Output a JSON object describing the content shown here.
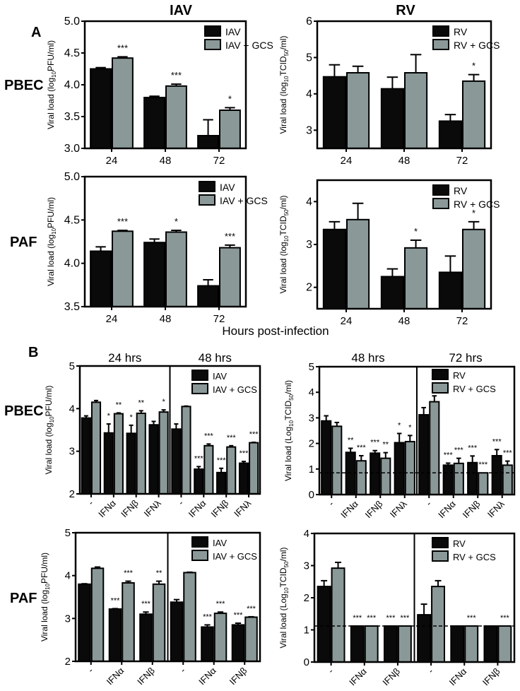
{
  "panel_labels": {
    "A": "A",
    "B": "B"
  },
  "row_labels": {
    "pbec": "PBEC",
    "paf": "PAF"
  },
  "column_titles": {
    "iav": "IAV",
    "rv": "RV"
  },
  "x_axis_title": "Hours post-infection",
  "colors": {
    "infected": "#0a0a0a",
    "gcs": "#8a9898",
    "axis": "#000000"
  },
  "chart_data": [
    {
      "type": "bar",
      "title": "IAV PBEC",
      "ylabel": [
        {
          "t": "Viral load (log"
        },
        {
          "t": "10",
          "sub": true
        },
        {
          "t": "PFU/ml)"
        }
      ],
      "ylim": [
        3.0,
        5.0
      ],
      "yticks": [
        "3.0",
        "3.5",
        "4.0",
        "4.5",
        "5.0"
      ],
      "categories": [
        "24",
        "48",
        "72"
      ],
      "series": [
        {
          "name": "IAV",
          "values": [
            4.25,
            3.8,
            3.2
          ],
          "errors": [
            0.02,
            0.02,
            0.25
          ],
          "sig": [
            "",
            "",
            ""
          ]
        },
        {
          "name": "IAV + GCS",
          "values": [
            4.42,
            3.98,
            3.6
          ],
          "errors": [
            0.02,
            0.03,
            0.04
          ],
          "sig": [
            "***",
            "***",
            "*"
          ]
        }
      ],
      "legend": "top-right"
    },
    {
      "type": "bar",
      "title": "RV PBEC",
      "ylabel": [
        {
          "t": "Viral load (log"
        },
        {
          "t": "10",
          "sub": true
        },
        {
          "t": "TCID"
        },
        {
          "t": "50",
          "sub": true
        },
        {
          "t": "/ml)"
        }
      ],
      "ylim": [
        2.5,
        6
      ],
      "yticks": [
        "3",
        "4",
        "5",
        "6"
      ],
      "categories": [
        "24",
        "48",
        "72"
      ],
      "series": [
        {
          "name": "RV",
          "values": [
            4.47,
            4.14,
            3.25
          ],
          "errors": [
            0.33,
            0.32,
            0.18
          ],
          "sig": [
            "",
            "",
            ""
          ]
        },
        {
          "name": "RV + GCS",
          "values": [
            4.58,
            4.58,
            4.35
          ],
          "errors": [
            0.18,
            0.5,
            0.18
          ],
          "sig": [
            "",
            "",
            "*"
          ]
        }
      ],
      "legend": "top-right"
    },
    {
      "type": "bar",
      "title": "IAV PAF",
      "ylabel": [
        {
          "t": "Viral load (log"
        },
        {
          "t": "10",
          "sub": true
        },
        {
          "t": "PFU/ml)"
        }
      ],
      "ylim": [
        3.5,
        5.0
      ],
      "yticks": [
        "3.5",
        "4.0",
        "4.5",
        "5.0"
      ],
      "categories": [
        "24",
        "48",
        "72"
      ],
      "series": [
        {
          "name": "IAV",
          "values": [
            4.14,
            4.24,
            3.74
          ],
          "errors": [
            0.05,
            0.04,
            0.07
          ],
          "sig": [
            "",
            "",
            ""
          ]
        },
        {
          "name": "IAV + GCS",
          "values": [
            4.37,
            4.36,
            4.18
          ],
          "errors": [
            0.01,
            0.02,
            0.03
          ],
          "sig": [
            "***",
            "*",
            "***"
          ]
        }
      ],
      "legend": "top-right"
    },
    {
      "type": "bar",
      "title": "RV PAF",
      "ylabel": [
        {
          "t": "Viral load (log"
        },
        {
          "t": "10",
          "sub": true
        },
        {
          "t": "TCID"
        },
        {
          "t": "50",
          "sub": true
        },
        {
          "t": "/ml)"
        }
      ],
      "ylim": [
        1.5,
        4.5
      ],
      "yticks": [
        "2",
        "3",
        "4"
      ],
      "categories": [
        "24",
        "48",
        "72"
      ],
      "series": [
        {
          "name": "RV",
          "values": [
            3.35,
            2.25,
            2.35
          ],
          "errors": [
            0.18,
            0.18,
            0.38
          ],
          "sig": [
            "",
            "",
            ""
          ]
        },
        {
          "name": "RV + GCS",
          "values": [
            3.58,
            2.92,
            3.35
          ],
          "errors": [
            0.38,
            0.18,
            0.18
          ],
          "sig": [
            "",
            "*",
            "*"
          ]
        }
      ],
      "legend": "top-right"
    },
    {
      "type": "bar",
      "title": "IAV PBEC interferon",
      "ylabel": [
        {
          "t": "Viral load (log"
        },
        {
          "t": "10",
          "sub": true
        },
        {
          "t": "PFU/ml)"
        }
      ],
      "ylim": [
        2,
        5
      ],
      "yticks": [
        "2",
        "3",
        "4",
        "5"
      ],
      "sections": [
        {
          "label": "24 hrs",
          "count": 4
        },
        {
          "label": "48 hrs",
          "count": 4
        }
      ],
      "categories": [
        "-",
        "IFNα",
        "IFNβ",
        "IFNλ",
        "-",
        "IFNα",
        "IFNβ",
        "IFNλ"
      ],
      "series": [
        {
          "name": "IAV",
          "values": [
            3.78,
            3.43,
            3.42,
            3.62,
            3.52,
            2.58,
            2.5,
            2.72
          ],
          "errors": [
            0.05,
            0.21,
            0.19,
            0.08,
            0.12,
            0.06,
            0.1,
            0.04
          ],
          "sig": [
            "",
            "*",
            "*",
            "",
            "",
            "***",
            "***",
            "***"
          ]
        },
        {
          "name": "IAV + GCS",
          "values": [
            4.15,
            3.88,
            3.89,
            3.92,
            4.05,
            3.13,
            3.1,
            3.2
          ],
          "errors": [
            0.04,
            0.02,
            0.06,
            0.05,
            0.01,
            0.04,
            0.03,
            0.01
          ],
          "sig": [
            "",
            "**",
            "**",
            "*",
            "",
            "***",
            "***",
            "***"
          ]
        }
      ],
      "legend": "top-right"
    },
    {
      "type": "bar",
      "title": "RV PBEC interferon",
      "ylabel": [
        {
          "t": "Viral load  (Log"
        },
        {
          "t": "10",
          "sub": true
        },
        {
          "t": "TCID"
        },
        {
          "t": "50",
          "sub": true
        },
        {
          "t": "/ml)"
        }
      ],
      "ylim": [
        0,
        5
      ],
      "yticks": [
        "0",
        "1",
        "2",
        "3",
        "4",
        "5"
      ],
      "sections": [
        {
          "label": "48 hrs",
          "count": 4
        },
        {
          "label": "72 hrs",
          "count": 4
        }
      ],
      "categories": [
        "-",
        "IFNα",
        "IFNβ",
        "IFNλ",
        "-",
        "IFNα",
        "IFNβ",
        "IFNλ"
      ],
      "reference_line": 0.85,
      "series": [
        {
          "name": "RV",
          "values": [
            2.88,
            1.65,
            1.62,
            2.03,
            3.12,
            1.15,
            1.25,
            1.52
          ],
          "errors": [
            0.2,
            0.16,
            0.1,
            0.36,
            0.28,
            0.08,
            0.26,
            0.24
          ],
          "sig": [
            "",
            "**",
            "***",
            "*",
            "",
            "***",
            "***",
            "***"
          ]
        },
        {
          "name": "RV + GCS",
          "values": [
            2.67,
            1.32,
            1.42,
            2.07,
            3.63,
            1.22,
            0.85,
            1.15
          ],
          "errors": [
            0.15,
            0.2,
            0.22,
            0.24,
            0.23,
            0.2,
            0.0,
            0.16
          ],
          "sig": [
            "",
            "***",
            "**",
            "*",
            "",
            "***",
            "***",
            "***"
          ]
        }
      ],
      "legend": "top-right"
    },
    {
      "type": "bar",
      "title": "IAV PAF interferon",
      "ylabel": [
        {
          "t": "Viral load (log"
        },
        {
          "t": "10",
          "sub": true
        },
        {
          "t": "PFU/ml)"
        }
      ],
      "ylim": [
        2,
        5
      ],
      "yticks": [
        "2",
        "3",
        "4",
        "5"
      ],
      "sections": [
        {
          "label": "",
          "count": 3
        },
        {
          "label": "",
          "count": 3
        }
      ],
      "categories": [
        "-",
        "IFNα",
        "IFNβ",
        "-",
        "IFNα",
        "IFNβ"
      ],
      "series": [
        {
          "name": "IAV",
          "values": [
            3.8,
            3.22,
            3.1,
            3.38,
            2.8,
            2.85
          ],
          "errors": [
            0.01,
            0.01,
            0.05,
            0.06,
            0.05,
            0.04
          ],
          "sig": [
            "",
            "***",
            "***",
            "",
            "***",
            "***"
          ]
        },
        {
          "name": "IAV + GCS",
          "values": [
            4.17,
            3.83,
            3.8,
            4.07,
            3.12,
            3.03
          ],
          "errors": [
            0.03,
            0.04,
            0.07,
            0.01,
            0.03,
            0.01
          ],
          "sig": [
            "",
            "***",
            "**",
            "",
            "***",
            "***"
          ]
        }
      ],
      "legend": "top-right"
    },
    {
      "type": "bar",
      "title": "RV PAF interferon",
      "ylabel": [
        {
          "t": "Viral load  (Log"
        },
        {
          "t": "10",
          "sub": true
        },
        {
          "t": "TCID"
        },
        {
          "t": "50",
          "sub": true
        },
        {
          "t": "/ml)"
        }
      ],
      "ylim": [
        0,
        4
      ],
      "yticks": [
        "0",
        "1",
        "2",
        "3",
        "4"
      ],
      "sections": [
        {
          "label": "",
          "count": 3
        },
        {
          "label": "",
          "count": 3
        }
      ],
      "categories": [
        "-",
        "IFNα",
        "IFNβ",
        "-",
        "IFNα",
        "IFNβ"
      ],
      "reference_line": 1.12,
      "series": [
        {
          "name": "RV",
          "values": [
            2.35,
            1.12,
            1.12,
            1.47,
            1.12,
            1.12
          ],
          "errors": [
            0.18,
            0,
            0,
            0.33,
            0,
            0
          ],
          "sig": [
            "",
            "***",
            "***",
            "",
            "",
            ""
          ]
        },
        {
          "name": "RV + GCS",
          "values": [
            2.92,
            1.12,
            1.12,
            2.35,
            1.12,
            1.12
          ],
          "errors": [
            0.18,
            0,
            0,
            0.18,
            0,
            0
          ],
          "sig": [
            "",
            "***",
            "***",
            "",
            "***",
            "***"
          ]
        }
      ],
      "legend": "top-right"
    }
  ]
}
